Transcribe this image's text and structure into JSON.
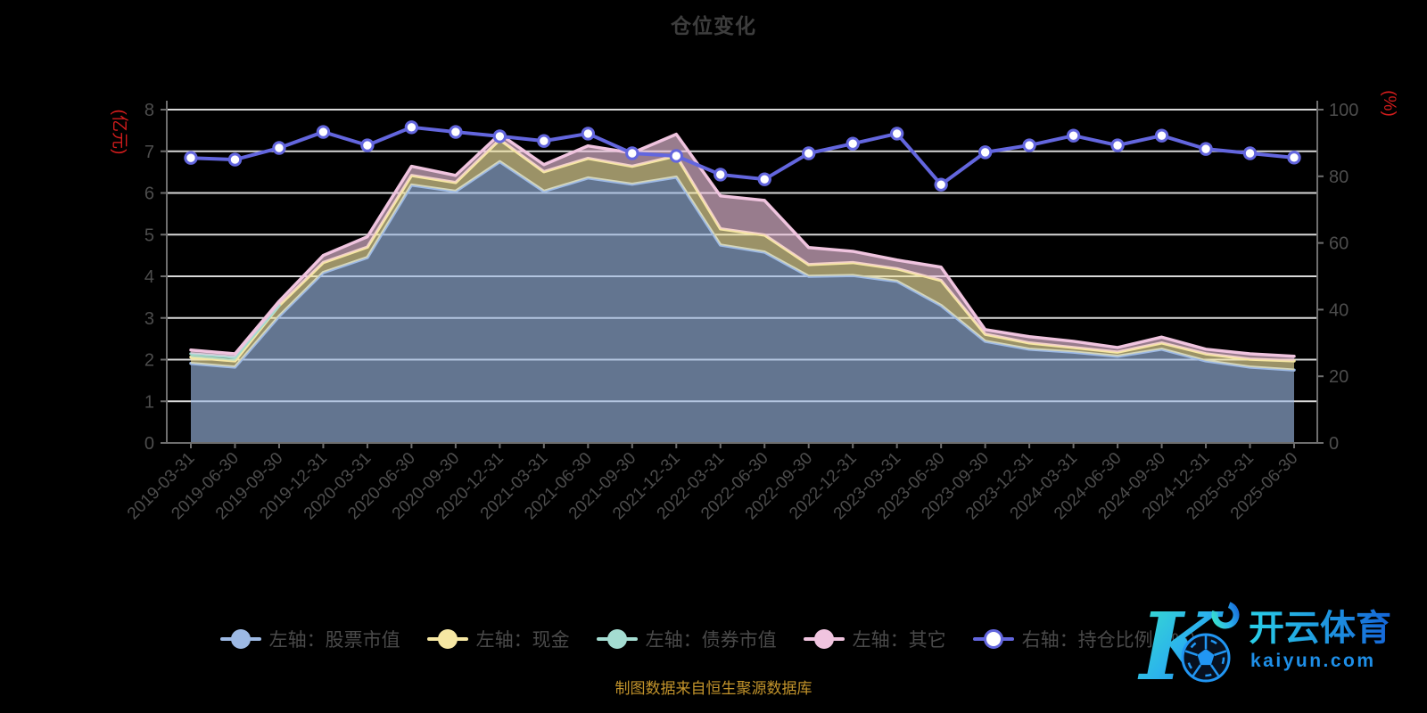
{
  "title": "仓位变化",
  "caption": "制图数据来自恒生聚源数据库",
  "watermark": {
    "logo_letter": "K",
    "brand": "开云体育",
    "domain": "kaiyun.com",
    "accent_cyan": "#3ae4c9",
    "accent_blue": "#1565d8"
  },
  "chart_data": {
    "type": "area",
    "stacked": true,
    "grid": true,
    "background": "#000000",
    "gridline_color": "#d8d8d8",
    "axis_color": "#6e6e6e",
    "tick_label_color": "#4d4d4d",
    "axis_name_color": "#d21c1c",
    "x_labels": [
      "2019-03-31",
      "2019-06-30",
      "2019-09-30",
      "2019-12-31",
      "2020-03-31",
      "2020-06-30",
      "2020-09-30",
      "2020-12-31",
      "2021-03-31",
      "2021-06-30",
      "2021-09-30",
      "2021-12-31",
      "2022-03-31",
      "2022-06-30",
      "2022-09-30",
      "2022-12-31",
      "2023-03-31",
      "2023-06-30",
      "2023-09-30",
      "2023-12-31",
      "2024-03-31",
      "2024-06-30",
      "2024-09-30",
      "2024-12-31",
      "2025-03-31",
      "2025-06-30"
    ],
    "left_axis": {
      "name": "(亿元)",
      "min": 0,
      "max": 8,
      "ticks": [
        0,
        1,
        2,
        3,
        4,
        5,
        6,
        7,
        8
      ]
    },
    "right_axis": {
      "name": "(%)",
      "min": 0,
      "max": 100,
      "ticks": [
        0,
        20,
        40,
        60,
        80,
        100
      ]
    },
    "series": [
      {
        "name": "左轴：股票市值",
        "type": "area",
        "axis": "left",
        "color": "#9db9e4",
        "values": [
          1.91,
          1.82,
          3.04,
          4.09,
          4.45,
          6.19,
          6.04,
          6.75,
          6.04,
          6.36,
          6.21,
          6.38,
          4.75,
          4.58,
          4.0,
          4.02,
          3.88,
          3.3,
          2.44,
          2.25,
          2.18,
          2.08,
          2.25,
          1.97,
          1.82,
          1.75
        ]
      },
      {
        "name": "左轴：现金",
        "type": "area",
        "axis": "left",
        "color": "#f6e7a3",
        "values": [
          0.15,
          0.15,
          0.26,
          0.24,
          0.25,
          0.23,
          0.21,
          0.53,
          0.47,
          0.47,
          0.43,
          0.51,
          0.39,
          0.41,
          0.28,
          0.31,
          0.3,
          0.6,
          0.17,
          0.15,
          0.11,
          0.1,
          0.15,
          0.17,
          0.19,
          0.22
        ]
      },
      {
        "name": "左轴：债券市值",
        "type": "area",
        "axis": "left",
        "color": "#a4dcd1",
        "values": [
          0.08,
          0.09,
          0,
          0,
          0,
          0,
          0,
          0,
          0,
          0,
          0,
          0,
          0,
          0,
          0,
          0,
          0,
          0,
          0,
          0,
          0,
          0,
          0,
          0,
          0,
          0
        ]
      },
      {
        "name": "左轴：其它",
        "type": "area",
        "axis": "left",
        "color": "#f0c4df",
        "values": [
          0.09,
          0.08,
          0.1,
          0.17,
          0.25,
          0.22,
          0.17,
          0.13,
          0.17,
          0.3,
          0.32,
          0.52,
          0.79,
          0.83,
          0.41,
          0.27,
          0.21,
          0.32,
          0.11,
          0.15,
          0.15,
          0.11,
          0.14,
          0.11,
          0.13,
          0.11
        ]
      },
      {
        "name": "右轴：持仓比例（%）",
        "type": "line",
        "axis": "right",
        "color": "#6366de",
        "values": [
          85.5,
          85.0,
          88.5,
          93.3,
          89.3,
          94.7,
          93.3,
          92.0,
          90.6,
          92.8,
          86.9,
          86.1,
          80.5,
          79.1,
          86.9,
          89.8,
          92.8,
          77.5,
          87.2,
          89.3,
          92.2,
          89.3,
          92.2,
          88.2,
          86.9,
          85.6
        ]
      }
    ]
  }
}
